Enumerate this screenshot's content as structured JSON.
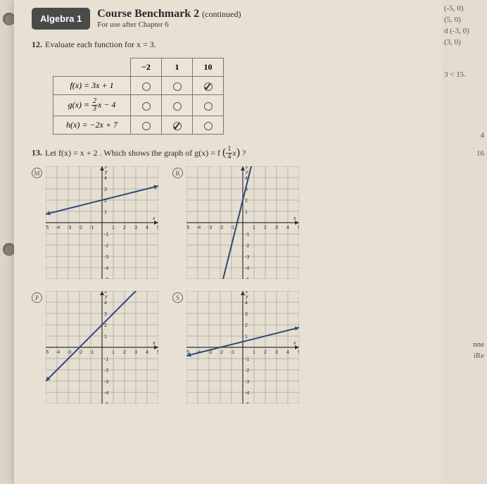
{
  "badge": "Algebra 1",
  "title": "Course Benchmark 2",
  "continued": "(continued)",
  "subtitle": "For use after Chapter 6",
  "q12": {
    "num": "12.",
    "text": "Evaluate each function for x = 3."
  },
  "table": {
    "headers": [
      "−2",
      "1",
      "10"
    ],
    "rows": [
      {
        "label": "f(x) = 3x + 1",
        "checks": [
          false,
          false,
          true
        ]
      },
      {
        "label": "g(x) = (2/3)x − 4",
        "checks": [
          false,
          false,
          false
        ]
      },
      {
        "label": "h(x) = −2x + 7",
        "checks": [
          false,
          true,
          false
        ]
      }
    ]
  },
  "q13": {
    "num": "13.",
    "text_a": "Let f(x) = x + 2 . Which shows the graph of g(x) = f",
    "text_b": "?"
  },
  "side": [
    "(-5, 0)",
    "(5, 0)",
    "d (-3, 0)",
    "(3, 0)",
    "",
    "3 < 15.",
    "",
    "",
    "",
    "4",
    "",
    "16",
    "",
    "",
    "",
    "",
    "",
    "",
    "nne",
    "iRe"
  ],
  "graphs": {
    "size": 160,
    "range": [
      -5,
      5
    ],
    "axis_color": "#333",
    "grid_color": "#888",
    "line_color": "#2a4a7a",
    "M": {
      "slope": 0.25,
      "intercept": 2
    },
    "R": {
      "slope": 4,
      "intercept": 2
    },
    "P": {
      "slope": 1,
      "intercept": 2
    },
    "S": {
      "slope": 0.25,
      "intercept": 0.5
    }
  }
}
